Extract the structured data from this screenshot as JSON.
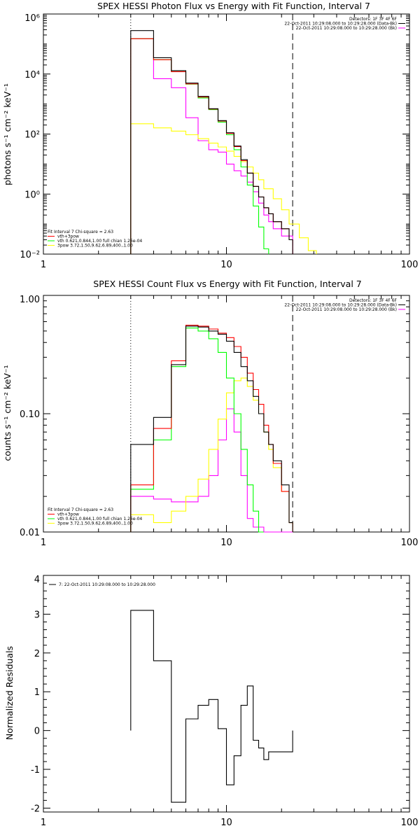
{
  "chart_data": [
    {
      "type": "line",
      "title": "SPEX HESSI Photon Flux vs Energy with Fit Function, Interval 7",
      "xlabel": "",
      "ylabel": "photons s⁻¹ cm⁻² keV⁻¹",
      "xscale": "log",
      "yscale": "log",
      "xlim": [
        1,
        100
      ],
      "ylim": [
        0.01,
        1000000
      ],
      "xticks": [
        1,
        10,
        100
      ],
      "xtick_labels": [
        "1",
        "10",
        "100"
      ],
      "yticks": [
        0.01,
        1,
        100,
        10000,
        1000000
      ],
      "ytick_labels": [
        "10⁻²",
        "10⁰",
        "10²",
        "10⁴",
        "10⁶"
      ],
      "vlines": [
        {
          "x": 3,
          "style": "dotted"
        },
        {
          "x": 23,
          "style": "dashed"
        }
      ],
      "legend_top_right": [
        {
          "text": "Detectors: 1F 3F 4F 6F",
          "color": "#000000"
        },
        {
          "text": "22-Oct-2011 10:29:08.000 to 10:29:28.000 (Data-Bk)",
          "color": "#000000"
        },
        {
          "text": "22-Oct-2011 10:29:08.000 to 10:29:28.000 (Bk)",
          "color": "#ff00ff"
        }
      ],
      "legend_bottom_left": [
        {
          "text": "Fit Interval 7   Chi-square = 2.63",
          "color": "#000000"
        },
        {
          "text": "vth+3pow",
          "color": "#ff0000"
        },
        {
          "text": "vth 0.621,0.844,1.00  full chian 1.26e-04",
          "color": "#00ff00"
        },
        {
          "text": "3pow 3.72,1.50,9.62,6.89,400.,1.00",
          "color": "#ffff00"
        }
      ],
      "series": [
        {
          "name": "Data-Bk",
          "color": "#000000",
          "style": "step",
          "edges": [
            3,
            4,
            5,
            6,
            7,
            8,
            9,
            10,
            11,
            12,
            13,
            14,
            15,
            16,
            17,
            18,
            20,
            22,
            23
          ],
          "values": [
            280000,
            35000,
            13000,
            5000,
            1800,
            700,
            280,
            110,
            40,
            14,
            5,
            1.8,
            0.8,
            0.35,
            0.22,
            0.12,
            0.07,
            0.03
          ]
        },
        {
          "name": "vth+3pow",
          "color": "#ff0000",
          "style": "step",
          "edges": [
            3,
            4,
            5,
            6,
            7,
            8,
            9,
            10,
            11,
            12,
            13,
            14,
            15,
            16,
            17,
            18,
            20,
            22,
            23
          ],
          "values": [
            150000,
            30000,
            12000,
            4700,
            1700,
            680,
            270,
            105,
            38,
            13,
            5,
            1.8,
            0.8,
            0.35,
            0.22,
            0.12,
            0.07,
            0.03
          ]
        },
        {
          "name": "vth",
          "color": "#00ff00",
          "style": "step",
          "edges": [
            3,
            4,
            5,
            6,
            7,
            8,
            9,
            10,
            11,
            12,
            13,
            14,
            15,
            16,
            17
          ],
          "values": [
            150000,
            30000,
            12000,
            4600,
            1600,
            650,
            250,
            95,
            30,
            8,
            2,
            0.4,
            0.08,
            0.015
          ]
        },
        {
          "name": "3pow",
          "color": "#ffff00",
          "style": "step",
          "edges": [
            3,
            4,
            5,
            6,
            7,
            8,
            9,
            10,
            11,
            12,
            13,
            14,
            15,
            16,
            18,
            20,
            22,
            25,
            28,
            31
          ],
          "values": [
            220,
            160,
            125,
            95,
            70,
            50,
            37,
            27,
            18,
            12,
            8,
            5,
            3,
            1.5,
            0.7,
            0.3,
            0.1,
            0.035,
            0.013
          ]
        },
        {
          "name": "Bk",
          "color": "#ff00ff",
          "style": "step",
          "edges": [
            3,
            4,
            5,
            6,
            7,
            8,
            9,
            10,
            11,
            12,
            13,
            14,
            15,
            16,
            17,
            18,
            20,
            23
          ],
          "values": [
            150000,
            7000,
            3500,
            350,
            60,
            30,
            25,
            10,
            6,
            4,
            2.5,
            1.2,
            0.5,
            0.2,
            0.12,
            0.07,
            0.04
          ]
        }
      ]
    },
    {
      "type": "line",
      "title": "SPEX HESSI Count Flux vs Energy with Fit Function, Interval 7",
      "xlabel": "",
      "ylabel": "counts s⁻¹ cm⁻² keV⁻¹",
      "xscale": "log",
      "yscale": "log",
      "xlim": [
        1,
        100
      ],
      "ylim": [
        0.01,
        1.0
      ],
      "xticks": [
        1,
        10,
        100
      ],
      "xtick_labels": [
        "1",
        "10",
        "100"
      ],
      "yticks": [
        0.01,
        0.1,
        1.0
      ],
      "ytick_labels": [
        "0.01",
        "0.10",
        "1.00"
      ],
      "vlines": [
        {
          "x": 3,
          "style": "dotted"
        },
        {
          "x": 23,
          "style": "dashed"
        }
      ],
      "legend_top_right": [
        {
          "text": "Detectors: 1F 3F 4F 6F",
          "color": "#000000"
        },
        {
          "text": "22-Oct-2011 10:29:08.000 to 10:29:28.000 (Data-Bk)",
          "color": "#000000"
        },
        {
          "text": "22-Oct-2011 10:29:08.000 to 10:29:28.000 (Bk)",
          "color": "#ff00ff"
        }
      ],
      "legend_bottom_left": [
        {
          "text": "Fit Interval 7   Chi-square = 2.63",
          "color": "#000000"
        },
        {
          "text": "vth+3pow",
          "color": "#ff0000"
        },
        {
          "text": "vth 0.621,0.844,1.00  full chian 1.26e-04",
          "color": "#00ff00"
        },
        {
          "text": "3pow 3.72,1.50,9.62,6.89,400.,1.00",
          "color": "#ffff00"
        }
      ],
      "series": [
        {
          "name": "Data-Bk",
          "color": "#000000",
          "style": "step",
          "edges": [
            3,
            4,
            5,
            6,
            7,
            8,
            9,
            10,
            11,
            12,
            13,
            14,
            15,
            16,
            17,
            18,
            20,
            22,
            23
          ],
          "values": [
            0.055,
            0.093,
            0.26,
            0.55,
            0.54,
            0.5,
            0.47,
            0.41,
            0.33,
            0.25,
            0.19,
            0.14,
            0.1,
            0.07,
            0.055,
            0.04,
            0.025,
            0.012
          ]
        },
        {
          "name": "vth+3pow",
          "color": "#ff0000",
          "style": "step",
          "edges": [
            3,
            4,
            5,
            6,
            7,
            8,
            9,
            10,
            11,
            12,
            13,
            14,
            15,
            16,
            17,
            18,
            20,
            22,
            23
          ],
          "values": [
            0.025,
            0.075,
            0.28,
            0.56,
            0.55,
            0.52,
            0.48,
            0.44,
            0.37,
            0.3,
            0.22,
            0.16,
            0.12,
            0.08,
            0.055,
            0.038,
            0.022,
            0.012
          ]
        },
        {
          "name": "vth",
          "color": "#00ff00",
          "style": "step",
          "edges": [
            3,
            4,
            5,
            6,
            7,
            8,
            9,
            10,
            11,
            12,
            13,
            14,
            15,
            16
          ],
          "values": [
            0.023,
            0.06,
            0.25,
            0.53,
            0.5,
            0.43,
            0.33,
            0.2,
            0.1,
            0.05,
            0.025,
            0.015,
            0.01
          ]
        },
        {
          "name": "3pow",
          "color": "#ffff00",
          "style": "step",
          "edges": [
            3,
            4,
            5,
            6,
            7,
            8,
            9,
            10,
            11,
            12,
            13,
            14,
            15,
            16,
            17,
            18,
            20,
            22,
            23
          ],
          "values": [
            0.014,
            0.012,
            0.015,
            0.02,
            0.028,
            0.05,
            0.09,
            0.15,
            0.19,
            0.2,
            0.17,
            0.13,
            0.1,
            0.07,
            0.05,
            0.035,
            0.022,
            0.012
          ]
        },
        {
          "name": "Bk",
          "color": "#ff00ff",
          "style": "step",
          "edges": [
            3,
            4,
            5,
            6,
            7,
            8,
            9,
            10,
            11,
            12,
            13,
            14,
            15,
            16,
            18,
            20,
            22,
            23
          ],
          "values": [
            0.02,
            0.019,
            0.018,
            0.018,
            0.02,
            0.03,
            0.06,
            0.11,
            0.07,
            0.03,
            0.013,
            0.011,
            0.011,
            0.01,
            0.01,
            0.01,
            0.01
          ]
        }
      ]
    },
    {
      "type": "line",
      "title": "",
      "xlabel": "",
      "ylabel": "Normalized Residuals",
      "xscale": "log",
      "yscale": "linear",
      "xlim": [
        1,
        100
      ],
      "ylim": [
        -2.1,
        4
      ],
      "xticks": [
        1,
        10,
        100
      ],
      "xtick_labels": [
        "1",
        "10",
        "100"
      ],
      "yticks": [
        -2,
        -1,
        0,
        1,
        2,
        3,
        4
      ],
      "ytick_labels": [
        "-2",
        "-1",
        "0",
        "1",
        "2",
        "3",
        "4"
      ],
      "legend_top_left": [
        {
          "text": "7: 22-Oct-2011 10:29:08.000 to 10:29:28.000",
          "color": "#000000"
        }
      ],
      "series": [
        {
          "name": "7: 22-Oct-2011 10:29:08.000 to 10:29:28.000",
          "color": "#000000",
          "style": "step",
          "edges": [
            3,
            4,
            5,
            6,
            7,
            8,
            9,
            10,
            11,
            12,
            13,
            14,
            15,
            16,
            17,
            18,
            20,
            22,
            23
          ],
          "values": [
            3.1,
            1.8,
            -1.85,
            0.3,
            0.65,
            0.8,
            0.05,
            -1.4,
            -0.65,
            0.65,
            1.15,
            -0.25,
            -0.45,
            -0.75,
            -0.55,
            -0.55,
            -0.55,
            -0.55
          ]
        }
      ]
    }
  ]
}
